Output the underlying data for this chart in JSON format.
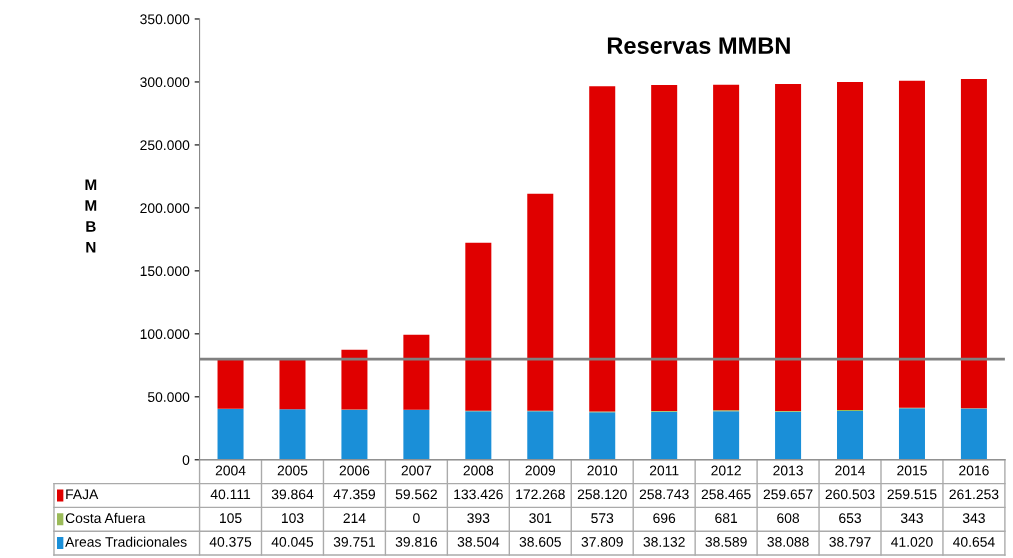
{
  "chart_data": {
    "type": "bar",
    "title": "Reservas MMBN",
    "ylabel": "MMBN",
    "categories": [
      "2004",
      "2005",
      "2006",
      "2007",
      "2008",
      "2009",
      "2010",
      "2011",
      "2012",
      "2013",
      "2014",
      "2015",
      "2016"
    ],
    "stacked": true,
    "series": [
      {
        "name": "Areas Tradicionales",
        "color": "#1a8fd8",
        "values": [
          40375,
          40045,
          39751,
          39816,
          38504,
          38605,
          37809,
          38132,
          38589,
          38088,
          38797,
          41020,
          40654
        ],
        "value_labels": [
          "40.375",
          "40.045",
          "39.751",
          "39.816",
          "38.504",
          "38.605",
          "37.809",
          "38.132",
          "38.589",
          "38.088",
          "38.797",
          "41.020",
          "40.654"
        ]
      },
      {
        "name": "Costa Afuera",
        "color": "#9bbb59",
        "values": [
          105,
          103,
          214,
          0,
          393,
          301,
          573,
          696,
          681,
          608,
          653,
          343,
          343
        ],
        "value_labels": [
          "105",
          "103",
          "214",
          "0",
          "393",
          "301",
          "573",
          "696",
          "681",
          "608",
          "653",
          "343",
          "343"
        ]
      },
      {
        "name": "FAJA",
        "color": "#e00000",
        "values": [
          40111,
          39864,
          47359,
          59562,
          133426,
          172268,
          258120,
          258743,
          258465,
          259657,
          260503,
          259515,
          261253
        ],
        "value_labels": [
          "40.111",
          "39.864",
          "47.359",
          "59.562",
          "133.426",
          "172.268",
          "258.120",
          "258.743",
          "258.465",
          "259.657",
          "260.503",
          "259.515",
          "261.253"
        ]
      }
    ],
    "ylim": [
      0,
      350000
    ],
    "yticks": [
      {
        "value": 0,
        "label": "0"
      },
      {
        "value": 50000,
        "label": "50.000"
      },
      {
        "value": 100000,
        "label": "100.000"
      },
      {
        "value": 150000,
        "label": "150.000"
      },
      {
        "value": 200000,
        "label": "200.000"
      },
      {
        "value": 250000,
        "label": "250.000"
      },
      {
        "value": 300000,
        "label": "300.000"
      },
      {
        "value": 350000,
        "label": "350.000"
      }
    ],
    "ref_lines": [
      {
        "axis": "y",
        "value": 80000,
        "color": "#808080"
      }
    ],
    "grid": false,
    "legend": "bottom left"
  }
}
